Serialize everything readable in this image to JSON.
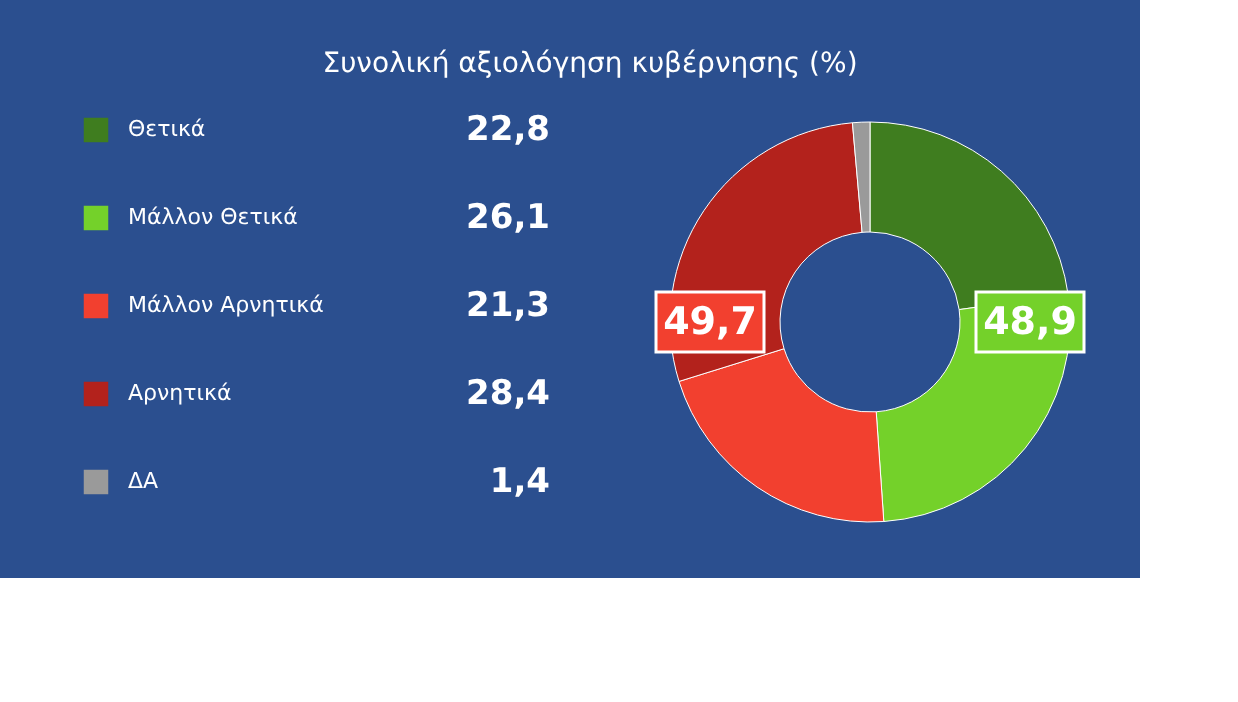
{
  "chart_data": {
    "type": "donut",
    "title": "Συνολική αξιολόγηση κυβέρνησης (%)",
    "categories": [
      "Θετικά",
      "Μάλλον Θετικά",
      "Μάλλον Αρνητικά",
      "Αρνητικά",
      "ΔΑ"
    ],
    "values": [
      22.8,
      26.1,
      21.3,
      28.4,
      1.4
    ],
    "value_labels": [
      "22,8",
      "26,1",
      "21,3",
      "28,4",
      "1,4"
    ],
    "colors": [
      "#3f7d1f",
      "#74d12a",
      "#f2402f",
      "#b3221c",
      "#9a9a9a"
    ],
    "annotations": [
      "49,7",
      "48,9"
    ],
    "legend": "left"
  }
}
